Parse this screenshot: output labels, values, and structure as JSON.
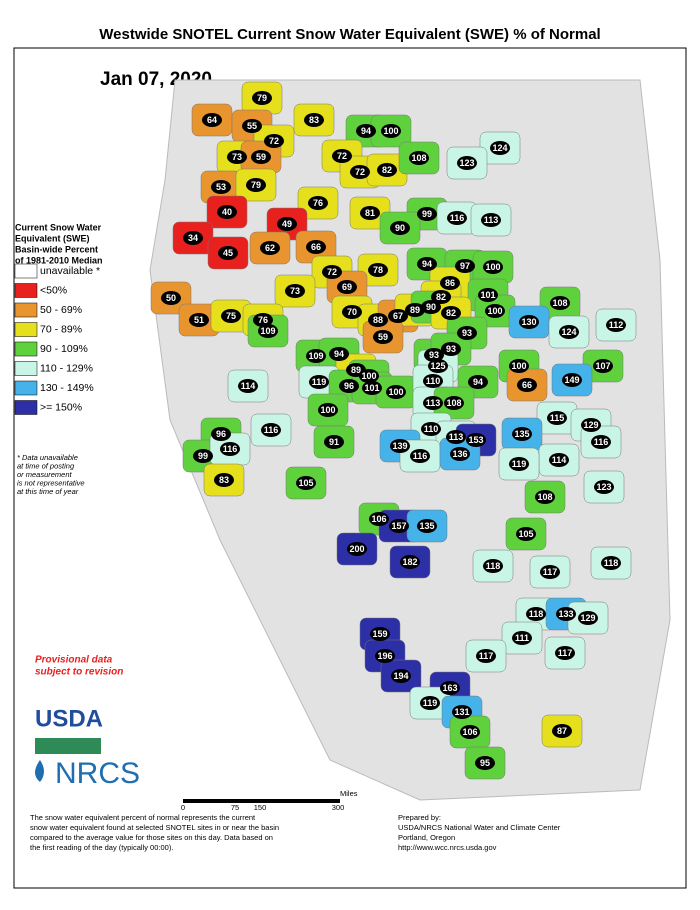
{
  "header": {
    "title": "Westwide SNOTEL Current Snow Water Equivalent (SWE) % of Normal",
    "date": "Jan 07, 2020"
  },
  "legend": {
    "title_lines": [
      "Current Snow Water",
      "Equivalent (SWE)",
      "Basin-wide Percent",
      "of 1981-2010 Median"
    ],
    "items": [
      {
        "label": "unavailable *",
        "color": "#ffffff",
        "range": null
      },
      {
        "label": "<50%",
        "color": "#e8211f",
        "range": [
          null,
          50
        ]
      },
      {
        "label": "50 - 69%",
        "color": "#e8952f",
        "range": [
          50,
          69
        ]
      },
      {
        "label": "70 - 89%",
        "color": "#e6e01c",
        "range": [
          70,
          89
        ]
      },
      {
        "label": "90 - 109%",
        "color": "#5fd13d",
        "range": [
          90,
          109
        ]
      },
      {
        "label": "110 - 129%",
        "color": "#c9f5e7",
        "range": [
          110,
          129
        ]
      },
      {
        "label": "130 - 149%",
        "color": "#45b3ea",
        "range": [
          130,
          149
        ]
      },
      {
        "label": ">= 150%",
        "color": "#2c2fa6",
        "range": [
          150,
          null
        ]
      }
    ]
  },
  "note_lines": [
    "* Data unavailable",
    "at time of posting",
    "or measurement",
    "is not representative",
    "at this time of year"
  ],
  "provisional_lines": [
    "Provisional data",
    "subject to revision"
  ],
  "logos": {
    "usda": "USDA",
    "nrcs": "NRCS"
  },
  "scale": {
    "ticks": [
      "0",
      "75",
      "150",
      "300"
    ],
    "unit": "Miles"
  },
  "footer_lines": [
    "The snow water equivalent percent of normal represents the current",
    "snow water equivalent found at selected SNOTEL sites in or near the basin",
    "compared to the average value for those sites on this day. Data based on",
    "the first reading of the day (typically 00:00)."
  ],
  "prepared_lines": [
    "Prepared by:",
    "USDA/NRCS National Water and Climate Center",
    "Portland, Oregon",
    "http://www.wcc.nrcs.usda.gov"
  ],
  "basin_values": [
    64,
    79,
    83,
    55,
    72,
    94,
    100,
    124,
    73,
    59,
    72,
    72,
    82,
    108,
    123,
    53,
    79,
    76,
    81,
    99,
    116,
    113,
    40,
    49,
    90,
    34,
    45,
    62,
    66,
    94,
    97,
    100,
    72,
    78,
    86,
    69,
    82,
    101,
    108,
    112,
    50,
    73,
    100,
    130,
    124,
    70,
    88,
    67,
    89,
    90,
    82,
    51,
    75,
    76,
    109,
    59,
    93,
    107,
    109,
    94,
    93,
    93,
    100,
    89,
    125,
    100,
    66,
    149,
    119,
    96,
    101,
    100,
    110,
    94,
    114,
    113,
    108,
    100,
    115,
    129,
    116,
    110,
    113,
    153,
    135,
    116,
    96,
    91,
    139,
    116,
    136,
    114,
    119,
    99,
    116,
    123,
    83,
    105,
    108,
    106,
    157,
    135,
    105,
    200,
    182,
    118,
    117,
    118,
    118,
    133,
    129,
    111,
    159,
    117,
    117,
    196,
    194,
    163,
    119,
    131,
    87,
    106,
    95
  ]
}
